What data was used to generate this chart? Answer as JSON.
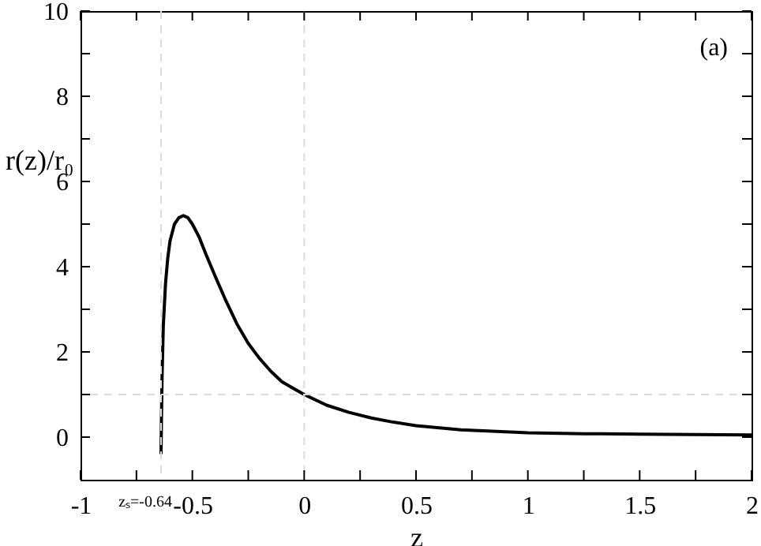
{
  "chart_data": {
    "type": "line",
    "xlabel": "z",
    "ylabel": "r(z)/r₀",
    "annotations": [
      "(a)"
    ],
    "x": [
      -0.64,
      -0.638,
      -0.635,
      -0.63,
      -0.62,
      -0.61,
      -0.6,
      -0.58,
      -0.56,
      -0.54,
      -0.52,
      -0.5,
      -0.47,
      -0.44,
      -0.4,
      -0.35,
      -0.3,
      -0.25,
      -0.2,
      -0.15,
      -0.1,
      -0.05,
      0,
      0.1,
      0.2,
      0.3,
      0.4,
      0.5,
      0.7,
      1,
      1.25,
      1.5,
      1.75,
      2
    ],
    "series": [
      {
        "color": "#000000",
        "values": [
          -0.4,
          0.5,
          1.5,
          2.6,
          3.6,
          4.2,
          4.6,
          5.0,
          5.15,
          5.2,
          5.15,
          5.0,
          4.7,
          4.3,
          3.8,
          3.2,
          2.65,
          2.2,
          1.85,
          1.55,
          1.3,
          1.15,
          1.0,
          0.75,
          0.58,
          0.45,
          0.35,
          0.27,
          0.17,
          0.1,
          0.08,
          0.07,
          0.06,
          0.05
        ]
      }
    ],
    "xlim": [
      -1,
      2
    ],
    "ylim": [
      -1,
      10
    ],
    "xticks": [
      -1,
      {
        "value": -0.75,
        "label": null
      },
      -0.5,
      {
        "value": -0.25,
        "label": null
      },
      0,
      {
        "value": 0.25,
        "label": null
      },
      0.5,
      {
        "value": 0.75,
        "label": null
      },
      1,
      {
        "value": 1.25,
        "label": null
      },
      1.5,
      {
        "value": 1.75,
        "label": null
      },
      2
    ],
    "yticks": [
      0,
      {
        "value": 1,
        "label": null
      },
      2,
      {
        "value": 3,
        "label": null
      },
      4,
      {
        "value": 5,
        "label": null
      },
      6,
      {
        "value": 7,
        "label": null
      },
      8,
      {
        "value": 9,
        "label": null
      },
      10
    ],
    "ref_lines": [
      {
        "axis": "x",
        "value": -0.64,
        "label": "zₛ=-0.64",
        "color": "#dddddd",
        "line_style": "dashed"
      },
      {
        "axis": "y",
        "value": 1,
        "color": "#dddddd",
        "line_style": "dashed"
      },
      {
        "axis": "x",
        "value": 0,
        "color": "#dddddd",
        "line_style": "dashed"
      }
    ],
    "grid": false,
    "marker": "none",
    "line_style": "solid"
  }
}
